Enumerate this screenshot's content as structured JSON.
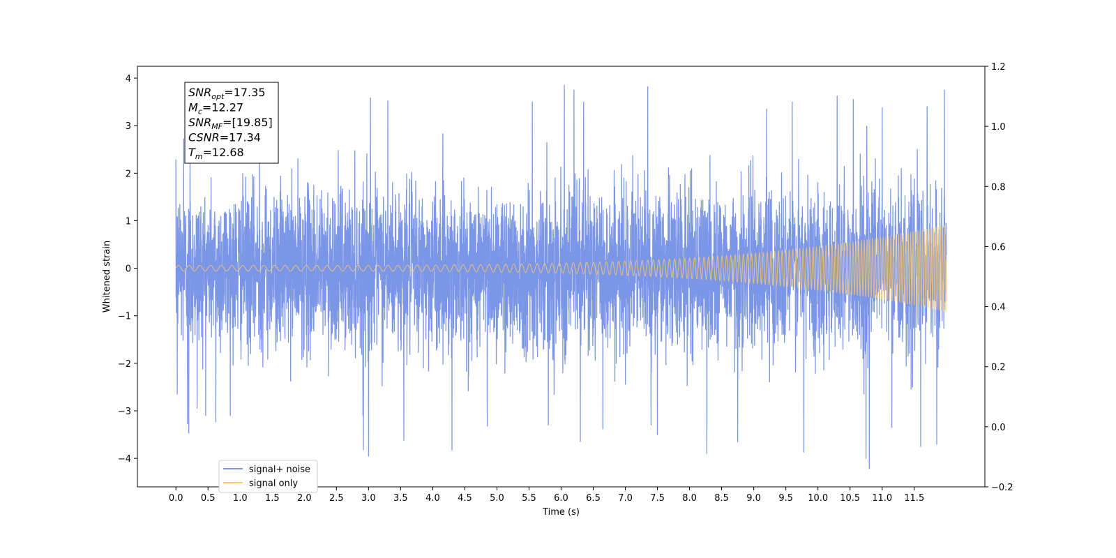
{
  "chart_data": {
    "type": "line",
    "title": "",
    "xlabel": "Time (s)",
    "ylabel": "Whitened strain",
    "x_range": [
      0,
      12.0
    ],
    "xlim": [
      -0.6,
      12.6
    ],
    "ylim": [
      -4.6,
      4.25
    ],
    "ylim_right": [
      -0.2,
      1.2
    ],
    "x_ticks": [
      "0.0",
      "0.5",
      "1.0",
      "1.5",
      "2.0",
      "2.5",
      "3.0",
      "3.5",
      "4.0",
      "4.5",
      "5.0",
      "5.5",
      "6.0",
      "6.5",
      "7.0",
      "7.5",
      "8.0",
      "8.5",
      "9.0",
      "9.5",
      "10.0",
      "10.5",
      "11.0",
      "11.5"
    ],
    "y_ticks": [
      "4",
      "3",
      "2",
      "1",
      "0",
      "−1",
      "−2",
      "−3",
      "−4"
    ],
    "y_ticks_right": [
      "1.2",
      "1.0",
      "0.8",
      "0.6",
      "0.4",
      "0.2",
      "0.0",
      "−0.2"
    ],
    "grid": false,
    "legend_position": "lower-left",
    "series": [
      {
        "name": "signal+ noise",
        "color": "#7b96e6",
        "kind": "noise",
        "typical_peak": 2.2,
        "max_value": 3.85,
        "min_value": -4.22,
        "spikes": [
          [
            0.06,
            1.34
          ],
          [
            0.02,
            -2.65
          ],
          [
            0.18,
            -3.27
          ],
          [
            0.2,
            -3.47
          ],
          [
            0.33,
            -2.95
          ],
          [
            0.62,
            -3.23
          ],
          [
            0.12,
            2.72
          ],
          [
            0.22,
            2.57
          ],
          [
            1.3,
            2.65
          ],
          [
            3.03,
            3.58
          ],
          [
            3.3,
            3.52
          ],
          [
            2.92,
            -3.82
          ],
          [
            3.0,
            -3.95
          ],
          [
            3.55,
            -3.62
          ],
          [
            4.3,
            -3.82
          ],
          [
            4.85,
            -3.32
          ],
          [
            5.55,
            3.5
          ],
          [
            6.05,
            3.85
          ],
          [
            6.2,
            3.75
          ],
          [
            6.35,
            3.5
          ],
          [
            7.35,
            3.82
          ],
          [
            5.8,
            -3.3
          ],
          [
            6.3,
            -3.65
          ],
          [
            6.65,
            -3.38
          ],
          [
            7.4,
            -3.3
          ],
          [
            7.5,
            -3.5
          ],
          [
            8.27,
            -3.9
          ],
          [
            8.75,
            -3.65
          ],
          [
            9.78,
            -3.87
          ],
          [
            9.2,
            3.35
          ],
          [
            9.6,
            3.5
          ],
          [
            10.3,
            3.62
          ],
          [
            10.55,
            3.55
          ],
          [
            10.75,
            -4.0
          ],
          [
            10.8,
            -4.22
          ],
          [
            11.15,
            -3.35
          ],
          [
            11.6,
            -3.75
          ],
          [
            11.85,
            -3.7
          ],
          [
            11.97,
            3.75
          ],
          [
            11.0,
            3.38
          ],
          [
            11.7,
            3.4
          ]
        ]
      },
      {
        "name": "signal only",
        "color": "#ffc964",
        "kind": "chirp",
        "start_amplitude": 0.06,
        "end_amplitude": 0.92,
        "start_frequency": 6.0,
        "end_frequency": 30.0
      }
    ],
    "annotation": {
      "lines": [
        {
          "base": "SNR",
          "sub": "opt",
          "value": "=17.35"
        },
        {
          "base": "M",
          "sub": "c",
          "value": "=12.27"
        },
        {
          "base": "SNR",
          "sub": "MF",
          "value": "=[19.85]"
        },
        {
          "base": "CSNR",
          "sub": "",
          "value": "=17.34"
        },
        {
          "base": "T",
          "sub": "m",
          "value": "=12.68"
        }
      ]
    }
  }
}
